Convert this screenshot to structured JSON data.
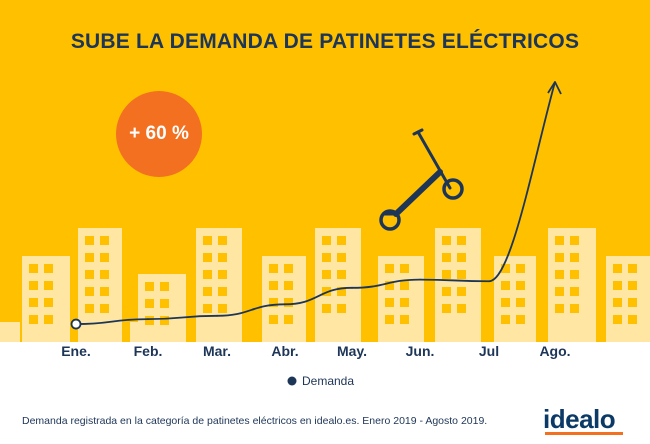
{
  "headline": "SUBE LA DEMANDA DE PATINETES ELÉCTRICOS",
  "badge": "+ 60 %",
  "footnote": "Demanda registrada en la categoría de patinetes eléctricos en idealo.es. Enero 2019 - Agosto 2019.",
  "logo": "idealo",
  "colors": {
    "background": "#FFC000",
    "buildings": "#FFE6A3",
    "line": "#1D3557",
    "badge": "#F37021",
    "text": "#1D3557"
  },
  "icons": [
    "scooter-icon",
    "arrow-head-icon",
    "legend-dot-icon"
  ],
  "chart_data": {
    "type": "line",
    "title": "SUBE LA DEMANDA DE PATINETES ELÉCTRICOS",
    "categories": [
      "Ene.",
      "Feb.",
      "Mar.",
      "Abr.",
      "May.",
      "Jun.",
      "Jul",
      "Ago."
    ],
    "series": [
      {
        "name": "Demanda",
        "values": [
          3,
          6,
          8,
          15,
          25,
          30,
          29,
          150
        ]
      }
    ],
    "annotation": "+ 60 %",
    "legend": "bottom-center",
    "grid": false
  }
}
